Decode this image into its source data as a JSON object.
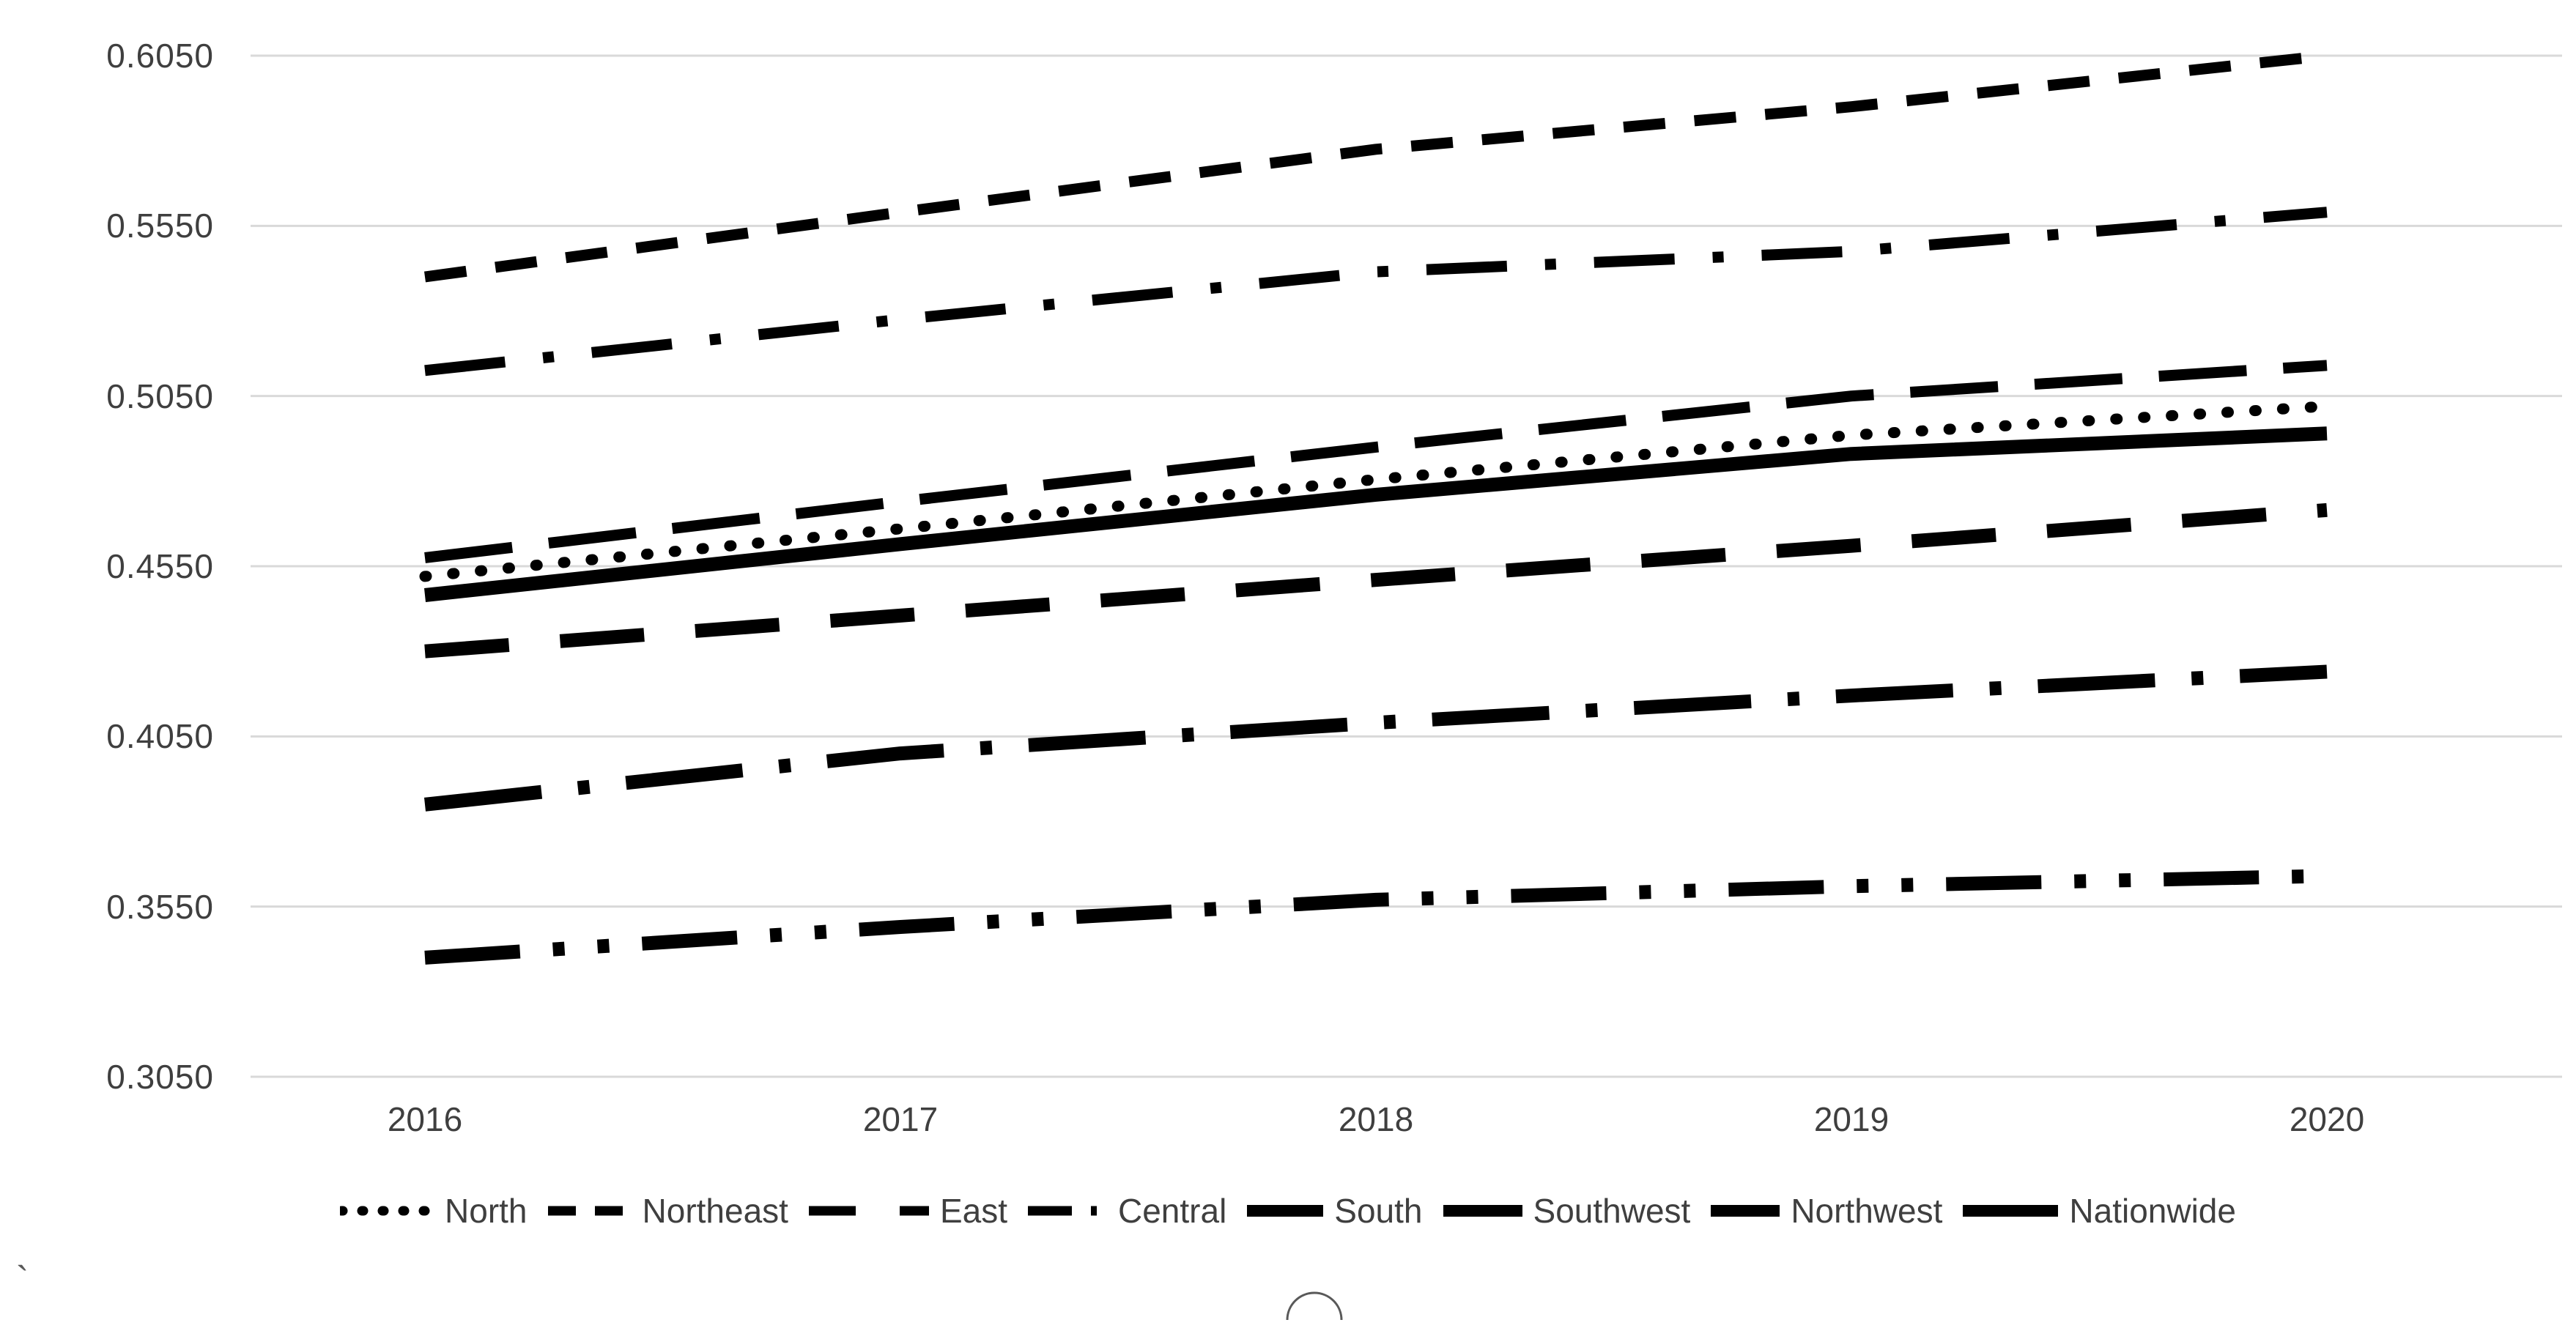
{
  "chart_data": {
    "type": "line",
    "title": "",
    "categories": [
      "2016",
      "2017",
      "2018",
      "2019",
      "2020"
    ],
    "series": [
      {
        "name": "North",
        "line_style": "dotted",
        "values": [
          0.452,
          0.466,
          0.4805,
          0.4935,
          0.502
        ]
      },
      {
        "name": "Northeast",
        "line_style": "dashed",
        "values": [
          0.54,
          0.559,
          0.5775,
          0.59,
          0.605
        ]
      },
      {
        "name": "East",
        "line_style": "long-dash",
        "values": [
          0.4575,
          0.474,
          0.49,
          0.505,
          0.514
        ]
      },
      {
        "name": "Central",
        "line_style": "dash-dot",
        "values": [
          0.5125,
          0.5275,
          0.5415,
          0.5475,
          0.559
        ]
      },
      {
        "name": "South",
        "line_style": "thick-long-dash-dot",
        "values": [
          0.385,
          0.4,
          0.409,
          0.417,
          0.424
        ]
      },
      {
        "name": "Southwest",
        "line_style": "thick-dash",
        "values": [
          0.43,
          0.4405,
          0.451,
          0.461,
          0.4715
        ]
      },
      {
        "name": "Northwest",
        "line_style": "thick-long-dash-dot-dot",
        "values": [
          0.34,
          0.349,
          0.357,
          0.361,
          0.364
        ]
      },
      {
        "name": "Nationwide",
        "line_style": "solid",
        "values": [
          0.4465,
          0.4615,
          0.476,
          0.488,
          0.494
        ]
      }
    ],
    "ylim": [
      0.305,
      0.605
    ],
    "ytick_labels": [
      "0.6050",
      "0.5550",
      "0.5050",
      "0.4550",
      "0.4050",
      "0.3550",
      "0.3050"
    ],
    "xlabel": "",
    "ylabel": "",
    "grid": "horizontal-only",
    "legend_position": "bottom",
    "series_color": "#000000",
    "gridline_color": "#d9d9d9",
    "label_color": "#3f3f3f"
  },
  "decorations": {
    "bottom_left_mark": "`"
  }
}
